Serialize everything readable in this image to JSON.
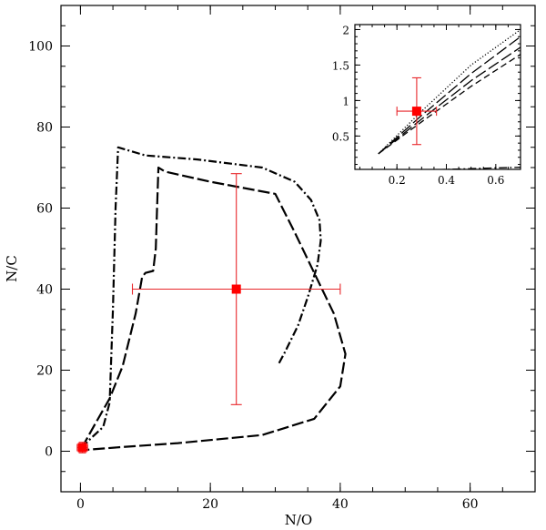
{
  "chart_data": [
    {
      "type": "line",
      "xlabel": "N/O",
      "ylabel": "N/C",
      "xlim": [
        -3,
        70
      ],
      "ylim": [
        -10,
        110
      ],
      "xticks": [
        0,
        20,
        40,
        60
      ],
      "yticks": [
        0,
        20,
        40,
        60,
        80,
        100
      ],
      "x_minor_step": 5,
      "y_minor_step": 5,
      "grid": false,
      "series": [
        {
          "style": "dash-dot",
          "points": [
            [
              0.2,
              0.8
            ],
            [
              1.5,
              3
            ],
            [
              3.5,
              6
            ],
            [
              4.5,
              12
            ],
            [
              5,
              35
            ],
            [
              5.4,
              60
            ],
            [
              5.8,
              75
            ],
            [
              10,
              73
            ],
            [
              18,
              72
            ],
            [
              28,
              70
            ],
            [
              33,
              66.5
            ],
            [
              35.5,
              62
            ],
            [
              36.8,
              57
            ],
            [
              37,
              52
            ],
            [
              36.5,
              46
            ],
            [
              35,
              38
            ],
            [
              33.5,
              31
            ],
            [
              31.5,
              24.5
            ],
            [
              30.5,
              21.5
            ]
          ]
        },
        {
          "style": "long-dash",
          "points": [
            [
              0.2,
              0.8
            ],
            [
              2,
              6
            ],
            [
              4.5,
              13
            ],
            [
              6.5,
              21
            ],
            [
              8.5,
              34
            ],
            [
              9.5,
              43
            ],
            [
              10,
              44
            ],
            [
              11.2,
              44.5
            ],
            [
              11.6,
              50
            ],
            [
              11.8,
              60
            ],
            [
              12,
              70
            ],
            [
              13,
              69
            ],
            [
              20,
              66.5
            ],
            [
              30,
              63.5
            ],
            [
              33,
              54
            ],
            [
              36,
              44
            ],
            [
              39,
              34
            ],
            [
              40.8,
              24
            ],
            [
              40,
              16
            ],
            [
              36,
              8
            ],
            [
              28,
              4
            ],
            [
              15,
              2
            ],
            [
              6,
              1
            ],
            [
              0.4,
              0.3
            ]
          ]
        }
      ],
      "point": {
        "x": 24,
        "y": 40,
        "xerr": [
          16,
          16
        ],
        "yerr": [
          28.5,
          28.5
        ]
      },
      "origin_point": {
        "x": 0.3,
        "y": 0.9,
        "xerr": [
          0.8,
          0.8
        ],
        "yerr": [
          1.3,
          1.3
        ]
      },
      "error_color": "#e8262a",
      "marker_color": "#ff0000"
    },
    {
      "type": "line",
      "inset": true,
      "xlim": [
        0.03,
        0.7
      ],
      "ylim": [
        0.03,
        2.07
      ],
      "xticks": [
        0.2,
        0.4,
        0.6
      ],
      "xtick_labels": [
        "0.2",
        "0.4",
        "0.6"
      ],
      "yticks": [
        0.5,
        1,
        1.5,
        2
      ],
      "ytick_labels": [
        "0.5",
        "1",
        "1.5",
        "2"
      ],
      "x_minor_step": 0.05,
      "y_minor_step": 0.1,
      "series": [
        {
          "style": "dotted",
          "points": [
            [
              0.125,
              0.25
            ],
            [
              0.3,
              0.85
            ],
            [
              0.5,
              1.5
            ],
            [
              0.7,
              2.0
            ]
          ]
        },
        {
          "style": "long-dash",
          "points": [
            [
              0.125,
              0.25
            ],
            [
              0.3,
              0.79
            ],
            [
              0.5,
              1.38
            ],
            [
              0.7,
              1.9
            ]
          ]
        },
        {
          "style": "long-dash",
          "points": [
            [
              0.125,
              0.25
            ],
            [
              0.3,
              0.74
            ],
            [
              0.5,
              1.28
            ],
            [
              0.7,
              1.75
            ]
          ]
        },
        {
          "style": "dash",
          "points": [
            [
              0.125,
              0.25
            ],
            [
              0.3,
              0.7
            ],
            [
              0.5,
              1.2
            ],
            [
              0.7,
              1.65
            ]
          ]
        },
        {
          "style": "dash-dot",
          "points": [
            [
              0.3,
              0.02
            ],
            [
              0.45,
              0.035
            ],
            [
              0.6,
              0.05
            ],
            [
              0.7,
              0.06
            ]
          ]
        }
      ],
      "point": {
        "x": 0.28,
        "y": 0.85,
        "xerr": [
          0.08,
          0.08
        ],
        "yerr": [
          0.47,
          0.47
        ]
      },
      "error_color": "#e8262a",
      "marker_color": "#ff0000"
    }
  ]
}
